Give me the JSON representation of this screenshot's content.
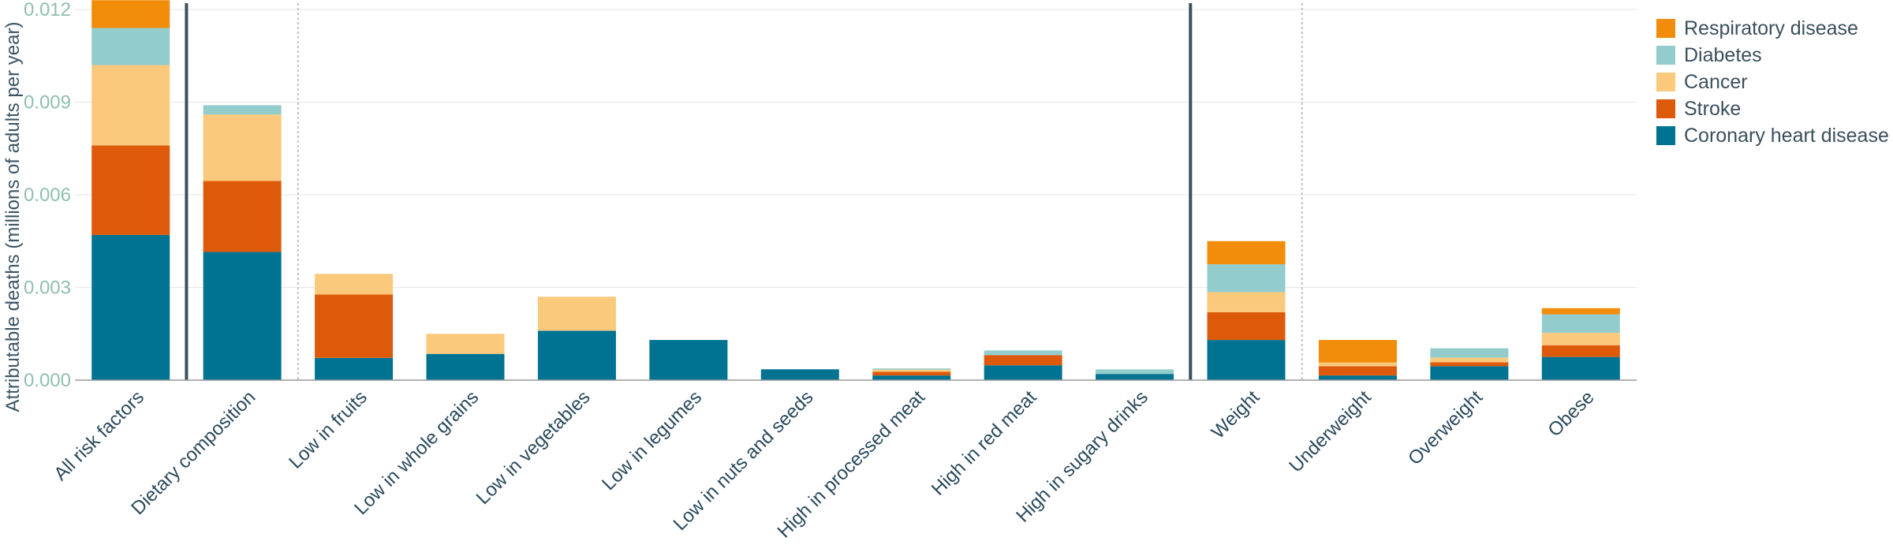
{
  "chart_data": {
    "type": "bar",
    "stacked": true,
    "ylabel": "Attributable deaths (millions of adults per year)",
    "xlabel": "",
    "ylim": [
      0,
      0.012
    ],
    "yticks": [
      "0.000",
      "0.003",
      "0.006",
      "0.009",
      "0.012"
    ],
    "ytick_values": [
      0,
      0.003,
      0.006,
      0.009,
      0.012
    ],
    "grid": true,
    "legend_position": "top-right",
    "categories": [
      "All risk factors",
      "Dietary composition",
      "Low in fruits",
      "Low in whole grains",
      "Low in vegetables",
      "Low in legumes",
      "Low in nuts and seeds",
      "High in processed meat",
      "High in red meat",
      "High in sugary drinks",
      "Weight",
      "Underweight",
      "Overweight",
      "Obese"
    ],
    "series": [
      {
        "name": "Coronary heart disease",
        "color": "#007392",
        "values": [
          0.0047,
          0.00415,
          0.00072,
          0.00085,
          0.0016,
          0.0013,
          0.00035,
          0.00015,
          0.00048,
          0.0002,
          0.0013,
          0.00015,
          0.00045,
          0.00075
        ]
      },
      {
        "name": "Stroke",
        "color": "#dd5a0b",
        "values": [
          0.0029,
          0.0023,
          0.00205,
          0.0,
          0.0,
          0.0,
          0.0,
          0.00012,
          0.00033,
          0.0,
          0.0009,
          0.0003,
          0.00013,
          0.00038
        ]
      },
      {
        "name": "Cancer",
        "color": "#fbc97c",
        "values": [
          0.0026,
          0.00215,
          0.00067,
          0.00065,
          0.0011,
          0.0,
          0.0,
          7e-05,
          0.0,
          0.0,
          0.00065,
          0.00012,
          0.00015,
          0.0004
        ]
      },
      {
        "name": "Diabetes",
        "color": "#93cccc",
        "values": [
          0.0012,
          0.0003,
          0.0,
          0.0,
          0.0,
          0.0,
          0.0,
          4e-05,
          0.00015,
          0.00015,
          0.0009,
          0.0,
          0.0003,
          0.0006
        ]
      },
      {
        "name": "Respiratory disease",
        "color": "#f28d0b",
        "values": [
          0.0009,
          0.0,
          0.0,
          0.0,
          0.0,
          0.0,
          0.0,
          0.0,
          0.0,
          0.0,
          0.00075,
          0.00073,
          0.0,
          0.0002
        ]
      }
    ],
    "solid_separators_after": [
      "All risk factors",
      "High in sugary drinks"
    ],
    "dotted_separators_after": [
      "Dietary composition",
      "Weight"
    ]
  }
}
